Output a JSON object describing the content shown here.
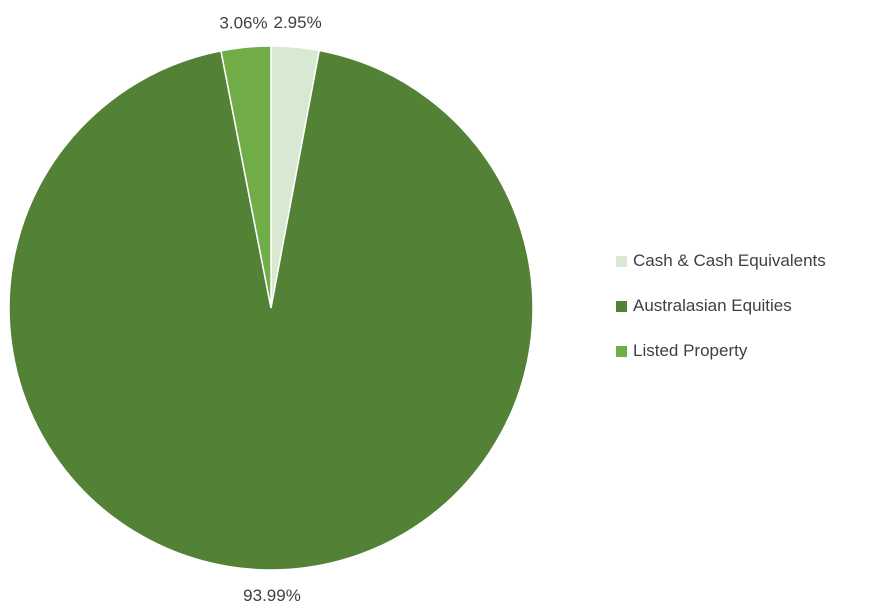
{
  "chart_data": {
    "type": "pie",
    "title": "",
    "legend_position": "right",
    "slices": [
      {
        "name": "Cash & Cash Equivalents",
        "value": 2.95,
        "label": "2.95%",
        "color": "#D8E8D2"
      },
      {
        "name": "Australasian Equities",
        "value": 93.99,
        "label": "93.99%",
        "color": "#538135"
      },
      {
        "name": "Listed Property",
        "value": 3.06,
        "label": "3.06%",
        "color": "#70AD47"
      }
    ]
  }
}
